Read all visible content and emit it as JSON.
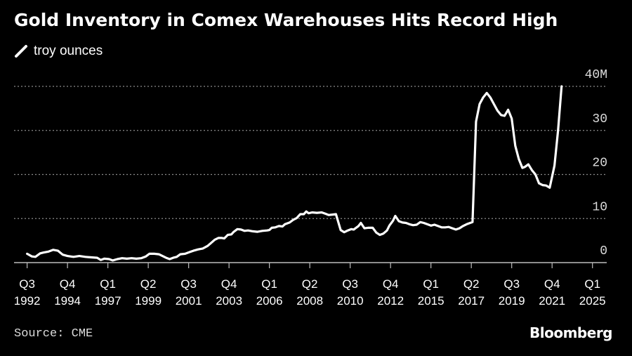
{
  "chart_data": {
    "type": "line",
    "title": "Gold Inventory in Comex Warehouses Hits Record High",
    "series": [
      {
        "name": "troy ounces",
        "color": "#ffffff",
        "points": [
          [
            1992.6,
            2.0
          ],
          [
            1993.0,
            1.4
          ],
          [
            1993.3,
            1.3
          ],
          [
            1993.7,
            2.1
          ],
          [
            1994.0,
            2.3
          ],
          [
            1994.4,
            2.5
          ],
          [
            1994.8,
            2.9
          ],
          [
            1995.2,
            2.7
          ],
          [
            1995.6,
            1.8
          ],
          [
            1996.0,
            1.5
          ],
          [
            1996.5,
            1.3
          ],
          [
            1997.0,
            1.5
          ],
          [
            1997.5,
            1.3
          ],
          [
            1998.0,
            1.2
          ],
          [
            1998.5,
            1.1
          ],
          [
            1998.8,
            0.6
          ],
          [
            1999.1,
            0.9
          ],
          [
            1999.5,
            0.8
          ],
          [
            1999.8,
            0.5
          ],
          [
            2000.2,
            0.8
          ],
          [
            2000.6,
            1.0
          ],
          [
            2001.0,
            0.9
          ],
          [
            2001.4,
            1.0
          ],
          [
            2001.8,
            0.9
          ],
          [
            2002.2,
            1.0
          ],
          [
            2002.6,
            1.4
          ],
          [
            2002.9,
            2.0
          ],
          [
            2003.3,
            2.0
          ],
          [
            2003.7,
            1.9
          ],
          [
            2004.0,
            1.5
          ],
          [
            2004.3,
            1.1
          ],
          [
            2004.6,
            0.8
          ],
          [
            2004.9,
            1.1
          ],
          [
            2005.2,
            1.3
          ],
          [
            2005.5,
            1.9
          ],
          [
            2005.9,
            2.0
          ],
          [
            2006.3,
            2.4
          ],
          [
            2006.6,
            2.7
          ],
          [
            2007.0,
            3.0
          ],
          [
            2007.4,
            3.2
          ],
          [
            2007.8,
            3.8
          ],
          [
            2008.1,
            4.5
          ],
          [
            2008.4,
            5.2
          ],
          [
            2008.7,
            5.6
          ],
          [
            2009.0,
            5.6
          ],
          [
            2009.2,
            5.5
          ],
          [
            2009.5,
            6.3
          ],
          [
            2009.8,
            6.4
          ],
          [
            2010.0,
            7.0
          ],
          [
            2010.3,
            7.6
          ],
          [
            2010.6,
            7.5
          ],
          [
            2010.9,
            7.2
          ],
          [
            2011.2,
            7.3
          ],
          [
            2011.6,
            7.1
          ],
          [
            2012.0,
            7.0
          ],
          [
            2012.4,
            7.2
          ],
          [
            2012.8,
            7.3
          ],
          [
            2013.0,
            7.4
          ],
          [
            2013.2,
            7.9
          ],
          [
            2013.5,
            8.0
          ],
          [
            2013.8,
            8.3
          ],
          [
            2014.1,
            8.2
          ],
          [
            2014.3,
            8.7
          ],
          [
            2014.7,
            9.1
          ],
          [
            2015.0,
            9.7
          ],
          [
            2015.3,
            10.1
          ],
          [
            2015.6,
            11.0
          ],
          [
            2015.9,
            11.0
          ],
          [
            2016.1,
            11.6
          ],
          [
            2016.3,
            11.2
          ],
          [
            2016.6,
            11.4
          ],
          [
            2017.0,
            11.3
          ],
          [
            2017.4,
            11.4
          ],
          [
            2017.7,
            11.1
          ],
          [
            2018.0,
            10.8
          ],
          [
            2018.3,
            10.9
          ],
          [
            2018.6,
            11.0
          ],
          [
            2019.0,
            7.4
          ],
          [
            2019.3,
            6.9
          ],
          [
            2019.6,
            7.3
          ],
          [
            2019.9,
            7.6
          ],
          [
            2020.1,
            7.5
          ],
          [
            2020.5,
            8.3
          ],
          [
            2020.7,
            9.0
          ],
          [
            2021.0,
            7.8
          ],
          [
            2021.3,
            7.9
          ],
          [
            2021.7,
            7.9
          ],
          [
            2022.0,
            6.8
          ],
          [
            2022.3,
            6.3
          ],
          [
            2022.6,
            6.6
          ],
          [
            2022.9,
            7.3
          ],
          [
            2023.1,
            8.4
          ],
          [
            2023.4,
            9.5
          ],
          [
            2023.6,
            10.6
          ],
          [
            2023.9,
            9.4
          ],
          [
            2024.2,
            9.1
          ],
          [
            2024.5,
            9.0
          ],
          [
            2024.8,
            8.7
          ],
          [
            2025.1,
            8.5
          ],
          [
            2025.4,
            8.6
          ],
          [
            2025.7,
            9.2
          ],
          [
            2026.0,
            9.0
          ],
          [
            2026.3,
            8.7
          ],
          [
            2026.6,
            8.4
          ],
          [
            2026.9,
            8.6
          ],
          [
            2027.2,
            8.3
          ],
          [
            2027.5,
            8.0
          ],
          [
            2027.8,
            8.0
          ],
          [
            2028.1,
            8.1
          ],
          [
            2028.4,
            7.8
          ],
          [
            2028.7,
            7.5
          ],
          [
            2029.0,
            7.8
          ],
          [
            2029.3,
            8.3
          ],
          [
            2029.6,
            8.7
          ],
          [
            2029.9,
            9.0
          ],
          [
            2030.1,
            9.2
          ],
          [
            2030.4,
            32.0
          ],
          [
            2030.7,
            36.0
          ],
          [
            2031.0,
            37.5
          ],
          [
            2031.3,
            38.5
          ],
          [
            2031.6,
            37.5
          ],
          [
            2031.9,
            36.0
          ],
          [
            2032.2,
            34.5
          ],
          [
            2032.5,
            33.5
          ],
          [
            2032.8,
            33.3
          ],
          [
            2033.1,
            34.7
          ],
          [
            2033.4,
            32.7
          ],
          [
            2033.7,
            26.5
          ],
          [
            2034.0,
            23.5
          ],
          [
            2034.3,
            21.5
          ],
          [
            2034.5,
            21.7
          ],
          [
            2034.8,
            22.3
          ],
          [
            2035.1,
            21.0
          ],
          [
            2035.4,
            20.0
          ],
          [
            2035.7,
            18.0
          ],
          [
            2036.0,
            17.6
          ],
          [
            2036.3,
            17.5
          ],
          [
            2036.6,
            17.0
          ],
          [
            2037.0,
            22.0
          ],
          [
            2037.3,
            30.0
          ],
          [
            2037.6,
            40.0
          ]
        ]
      }
    ],
    "xlim": [
      1991.5,
      2041.4
    ],
    "ylim": [
      0,
      40
    ],
    "y_ticks": [
      {
        "value": 40,
        "label": "40M"
      },
      {
        "value": 30,
        "label": "30"
      },
      {
        "value": 20,
        "label": "20"
      },
      {
        "value": 10,
        "label": "10"
      },
      {
        "value": 0,
        "label": "0"
      }
    ],
    "x_ticks": [
      {
        "value": 1992.6,
        "line1": "Q3",
        "line2": "1992"
      },
      {
        "value": 1996.0,
        "line1": "Q4",
        "line2": "1994"
      },
      {
        "value": 1999.4,
        "line1": "Q1",
        "line2": "1997"
      },
      {
        "value": 2002.8,
        "line1": "Q2",
        "line2": "1999"
      },
      {
        "value": 2006.2,
        "line1": "Q3",
        "line2": "2001"
      },
      {
        "value": 2009.6,
        "line1": "Q4",
        "line2": "2003"
      },
      {
        "value": 2013.0,
        "line1": "Q1",
        "line2": "2006"
      },
      {
        "value": 2016.4,
        "line1": "Q2",
        "line2": "2008"
      },
      {
        "value": 2019.8,
        "line1": "Q3",
        "line2": "2010"
      },
      {
        "value": 2023.2,
        "line1": "Q4",
        "line2": "2012"
      },
      {
        "value": 2026.6,
        "line1": "Q1",
        "line2": "2015"
      },
      {
        "value": 2030.0,
        "line1": "Q2",
        "line2": "2017"
      },
      {
        "value": 2033.4,
        "line1": "Q3",
        "line2": "2019"
      },
      {
        "value": 2036.8,
        "line1": "Q4",
        "line2": "2021"
      },
      {
        "value": 2040.2,
        "line1": "Q1",
        "line2": "2025"
      }
    ],
    "x_labels_shown": [
      {
        "line1": "Q3",
        "line2": "1992",
        "value": 1992.6
      },
      {
        "line1": "Q4",
        "line2": "1994",
        "value": 1996.0
      },
      {
        "line1": "Q1",
        "line2": "1997",
        "value": 1999.4
      },
      {
        "line1": "Q2",
        "line2": "1999",
        "value": 2002.8
      },
      {
        "line1": "Q3",
        "line2": "2001",
        "value": 2006.2
      },
      {
        "line1": "Q4",
        "line2": "2003",
        "value": 2009.6
      },
      {
        "line1": "Q1",
        "line2": "2006",
        "value": 2013.0
      },
      {
        "line1": "Q2",
        "line2": "2008",
        "value": 2016.4
      },
      {
        "line1": "Q3",
        "line2": "2010",
        "value": 2019.8
      },
      {
        "line1": "Q4",
        "line2": "2012",
        "value": 2023.2
      },
      {
        "line1": "Q1",
        "line2": "2015",
        "value": 2026.6
      },
      {
        "line1": "Q2",
        "line2": "2017",
        "value": 2030.0
      },
      {
        "line1": "Q3",
        "line2": "2019",
        "value": 2033.4
      },
      {
        "line1": "Q4",
        "line2": "2021",
        "value": 2036.8
      },
      {
        "line1": "Q1",
        "line2": "2025",
        "value": 2040.2
      }
    ],
    "grid": "horizontal-dotted",
    "legend_placement": "top-left"
  },
  "legend": {
    "label": "troy ounces"
  },
  "footer": {
    "source": "Source: CME",
    "brand": "Bloomberg"
  }
}
